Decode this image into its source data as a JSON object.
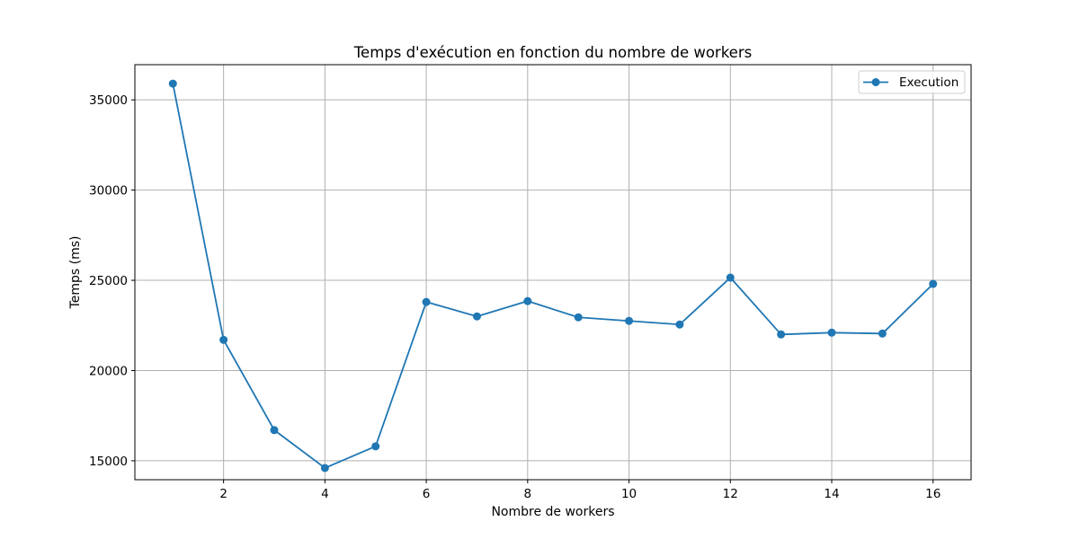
{
  "chart_data": {
    "type": "line",
    "title": "Temps d'exécution en fonction du nombre de workers",
    "xlabel": "Nombre de workers",
    "ylabel": "Temps (ms)",
    "x": [
      1,
      2,
      3,
      4,
      5,
      6,
      7,
      8,
      9,
      10,
      11,
      12,
      13,
      14,
      15,
      16
    ],
    "series": [
      {
        "name": "Execution",
        "color": "#1f77b4",
        "marker": "circle",
        "values": [
          35900,
          21700,
          16700,
          14600,
          15800,
          23800,
          23000,
          23850,
          22950,
          22750,
          22550,
          25150,
          22000,
          22100,
          22050,
          24800
        ]
      }
    ],
    "xticks": [
      2,
      4,
      6,
      8,
      10,
      12,
      14,
      16
    ],
    "xtick_labels": [
      "2",
      "4",
      "6",
      "8",
      "10",
      "12",
      "14",
      "16"
    ],
    "yticks": [
      15000,
      20000,
      25000,
      30000,
      35000
    ],
    "ytick_labels": [
      "15000",
      "20000",
      "25000",
      "30000",
      "35000"
    ],
    "xlim": [
      0.25,
      16.75
    ],
    "ylim": [
      13950,
      36950
    ],
    "grid": true,
    "legend_position": "top-right"
  }
}
